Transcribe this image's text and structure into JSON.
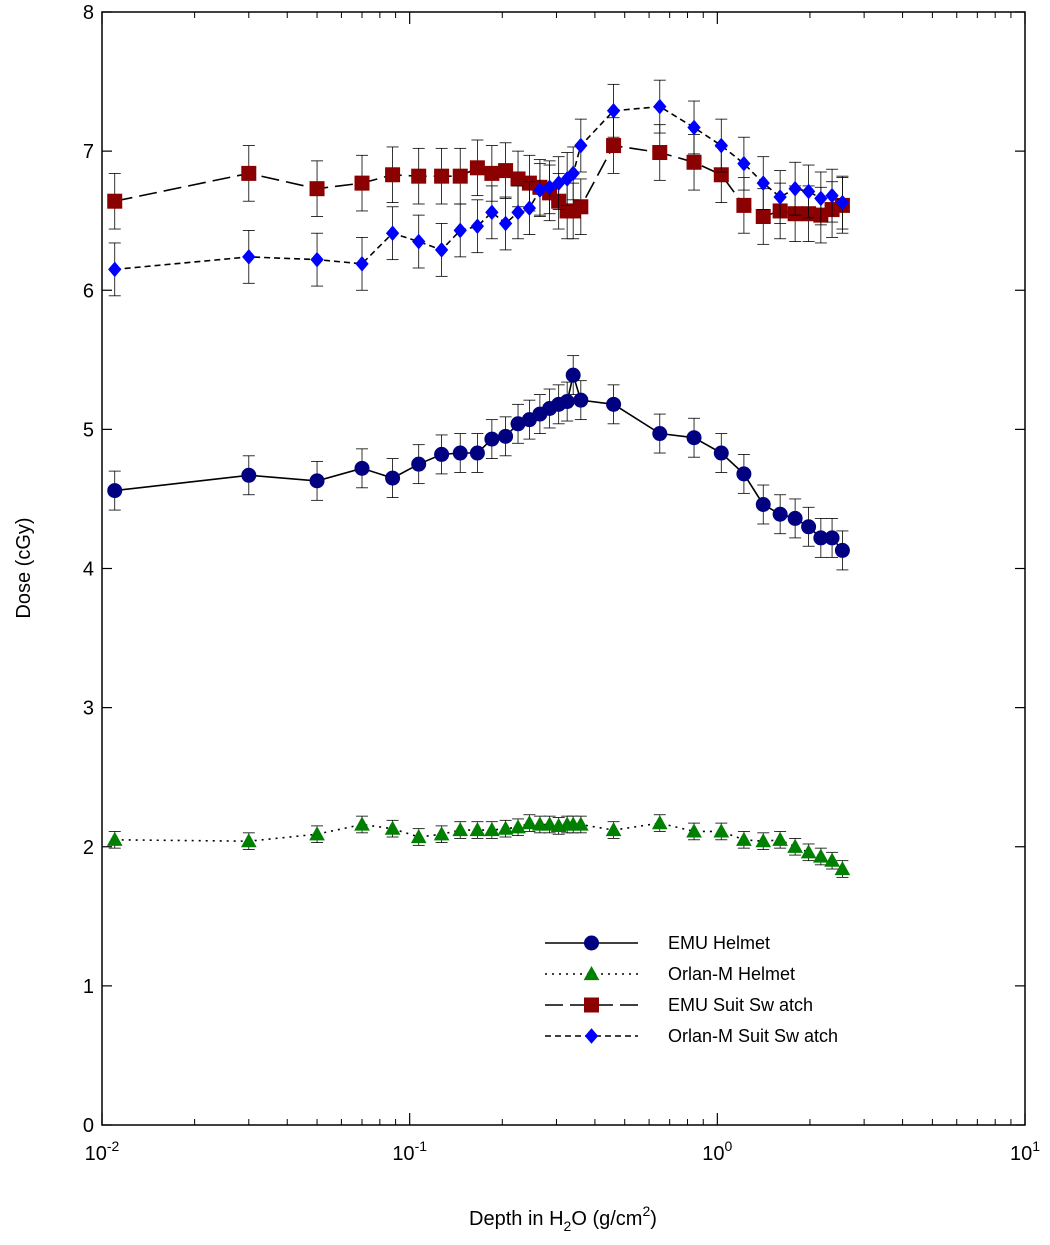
{
  "chart_data": {
    "type": "scatter",
    "title": "",
    "xlabel_parts": [
      "Depth in H",
      "2",
      "O (g/cm",
      "2",
      ")"
    ],
    "ylabel": "Dose (cGy)",
    "xscale": "log",
    "xlim": [
      0.01,
      10
    ],
    "ylim": [
      0,
      8
    ],
    "x_ticks": [
      {
        "base": "10",
        "exp": "-2"
      },
      {
        "base": "10",
        "exp": "-1"
      },
      {
        "base": "10",
        "exp": "0"
      },
      {
        "base": "10",
        "exp": "1"
      }
    ],
    "y_ticks": [
      "0",
      "1",
      "2",
      "3",
      "4",
      "5",
      "6",
      "7",
      "8"
    ],
    "grid": false,
    "legend_position": "lower-right",
    "series": [
      {
        "name": "EMU Helmet",
        "color": "#000080",
        "marker": "circle",
        "line": "solid",
        "error": 0.14,
        "x": [
          0.011,
          0.03,
          0.05,
          0.07,
          0.088,
          0.107,
          0.127,
          0.146,
          0.166,
          0.185,
          0.205,
          0.225,
          0.245,
          0.265,
          0.285,
          0.305,
          0.325,
          0.34,
          0.36,
          0.46,
          0.65,
          0.84,
          1.03,
          1.22,
          1.41,
          1.6,
          1.79,
          1.98,
          2.17,
          2.36,
          2.55
        ],
        "y": [
          4.56,
          4.67,
          4.63,
          4.72,
          4.65,
          4.75,
          4.82,
          4.83,
          4.83,
          4.93,
          4.95,
          5.04,
          5.07,
          5.11,
          5.15,
          5.18,
          5.2,
          5.39,
          5.21,
          5.18,
          4.97,
          4.94,
          4.83,
          4.68,
          4.46,
          4.39,
          4.36,
          4.3,
          4.22,
          4.22,
          4.13
        ]
      },
      {
        "name": "Orlan-M Helmet",
        "color": "#008000",
        "marker": "triangle",
        "line": "dotted",
        "error": 0.06,
        "x": [
          0.011,
          0.03,
          0.05,
          0.07,
          0.088,
          0.107,
          0.127,
          0.146,
          0.166,
          0.185,
          0.205,
          0.225,
          0.245,
          0.265,
          0.285,
          0.305,
          0.325,
          0.34,
          0.36,
          0.46,
          0.65,
          0.84,
          1.03,
          1.22,
          1.41,
          1.6,
          1.79,
          1.98,
          2.17,
          2.36,
          2.55
        ],
        "y": [
          2.05,
          2.04,
          2.09,
          2.16,
          2.13,
          2.07,
          2.09,
          2.12,
          2.12,
          2.12,
          2.13,
          2.14,
          2.17,
          2.16,
          2.16,
          2.15,
          2.16,
          2.16,
          2.16,
          2.12,
          2.17,
          2.11,
          2.11,
          2.05,
          2.04,
          2.05,
          2.0,
          1.96,
          1.93,
          1.9,
          1.84
        ]
      },
      {
        "name": "EMU Suit Sw atch",
        "color": "#8b0000",
        "marker": "square",
        "line": "longdash",
        "error": 0.2,
        "x": [
          0.011,
          0.03,
          0.05,
          0.07,
          0.088,
          0.107,
          0.127,
          0.146,
          0.166,
          0.185,
          0.205,
          0.225,
          0.245,
          0.265,
          0.285,
          0.305,
          0.325,
          0.34,
          0.36,
          0.46,
          0.65,
          0.84,
          1.03,
          1.22,
          1.41,
          1.6,
          1.79,
          1.98,
          2.17,
          2.36,
          2.55
        ],
        "y": [
          6.64,
          6.84,
          6.73,
          6.77,
          6.83,
          6.82,
          6.82,
          6.82,
          6.88,
          6.84,
          6.86,
          6.8,
          6.77,
          6.74,
          6.7,
          6.64,
          6.57,
          6.57,
          6.6,
          7.04,
          6.99,
          6.92,
          6.83,
          6.61,
          6.53,
          6.57,
          6.55,
          6.55,
          6.54,
          6.58,
          6.61
        ]
      },
      {
        "name": "Orlan-M Suit Sw atch",
        "color": "#0000ff",
        "marker": "diamond",
        "line": "shortdash",
        "error": 0.19,
        "x": [
          0.011,
          0.03,
          0.05,
          0.07,
          0.088,
          0.107,
          0.127,
          0.146,
          0.166,
          0.185,
          0.205,
          0.225,
          0.245,
          0.265,
          0.285,
          0.305,
          0.325,
          0.34,
          0.36,
          0.46,
          0.65,
          0.84,
          1.03,
          1.22,
          1.41,
          1.6,
          1.79,
          1.98,
          2.17,
          2.36,
          2.55
        ],
        "y": [
          6.15,
          6.24,
          6.22,
          6.19,
          6.41,
          6.35,
          6.29,
          6.43,
          6.46,
          6.56,
          6.48,
          6.56,
          6.59,
          6.72,
          6.74,
          6.77,
          6.8,
          6.84,
          7.04,
          7.29,
          7.32,
          7.17,
          7.04,
          6.91,
          6.77,
          6.67,
          6.73,
          6.71,
          6.66,
          6.68,
          6.63
        ]
      }
    ]
  }
}
